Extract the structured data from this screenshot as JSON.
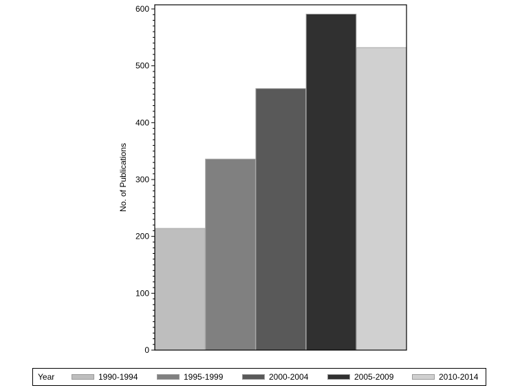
{
  "chart_data": {
    "type": "bar",
    "title": "",
    "xlabel": "",
    "ylabel": "No. of Publications",
    "ylim": [
      0,
      600
    ],
    "yticks": [
      0,
      100,
      200,
      300,
      400,
      500,
      600
    ],
    "minor_tick_step": 10,
    "grid": false,
    "legend_position": "bottom",
    "legend_title": "Year",
    "categories": [
      "1990-1994",
      "1995-1999",
      "2000-2004",
      "2005-2009",
      "2010-2014"
    ],
    "values": [
      214,
      336,
      460,
      591,
      532
    ],
    "colors": [
      "#bebebe",
      "#808080",
      "#595959",
      "#303030",
      "#d0d0d0"
    ]
  },
  "legend": {
    "title": "Year",
    "items": [
      {
        "label": "1990-1994",
        "color": "#bebebe"
      },
      {
        "label": "1995-1999",
        "color": "#808080"
      },
      {
        "label": "2000-2004",
        "color": "#595959"
      },
      {
        "label": "2005-2009",
        "color": "#303030"
      },
      {
        "label": "2010-2014",
        "color": "#d0d0d0"
      }
    ]
  }
}
